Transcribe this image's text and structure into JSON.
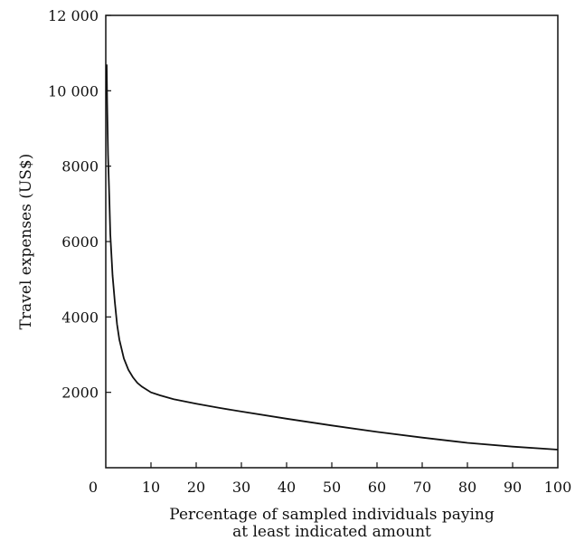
{
  "chart_data": {
    "type": "line",
    "title": "",
    "xlabel": "Percentage of sampled individuals paying",
    "xlabel_line2": "at least indicated amount",
    "ylabel": "Travel expenses (US$)",
    "xlim": [
      0,
      100
    ],
    "ylim": [
      0,
      12000
    ],
    "x_ticks": [
      0,
      10,
      20,
      30,
      40,
      50,
      60,
      70,
      80,
      90,
      100
    ],
    "x_tick_labels": [
      "0",
      "10",
      "20",
      "30",
      "40",
      "50",
      "60",
      "70",
      "80",
      "90",
      "100"
    ],
    "y_ticks": [
      2000,
      4000,
      6000,
      8000,
      10000,
      12000
    ],
    "y_tick_labels": [
      "2000",
      "4000",
      "6000",
      "8000",
      "10 000",
      "12 000"
    ],
    "grid": false,
    "legend": "none",
    "line_color": "#111111",
    "series": [
      {
        "x": [
          0.2,
          0.3,
          0.5,
          0.8,
          1,
          1.5,
          2,
          2.5,
          3,
          4,
          5,
          6,
          7,
          8,
          10,
          12,
          15,
          20,
          25,
          30,
          40,
          50,
          60,
          70,
          80,
          90,
          100
        ],
        "values": [
          10700,
          9700,
          8300,
          7100,
          6200,
          5100,
          4400,
          3800,
          3400,
          2900,
          2600,
          2400,
          2250,
          2150,
          2000,
          1920,
          1820,
          1700,
          1590,
          1490,
          1300,
          1120,
          950,
          800,
          660,
          560,
          480
        ]
      }
    ]
  }
}
